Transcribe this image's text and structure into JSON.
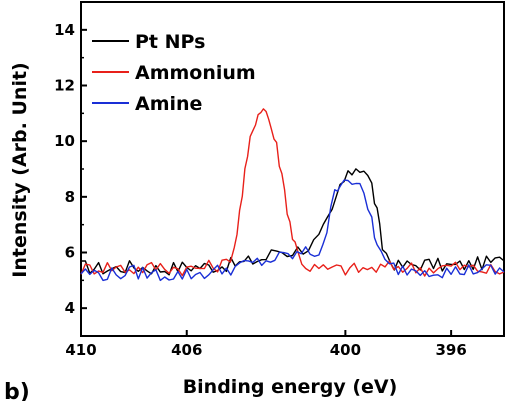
{
  "chart_data": {
    "type": "line",
    "title": "",
    "xlabel": "Binding energy (eV)",
    "ylabel": "Intensity (Arb. Unit)",
    "xlim": [
      410,
      394
    ],
    "ylim": [
      3,
      15
    ],
    "x_reversed": true,
    "x_ticks": [
      410,
      406,
      400,
      396
    ],
    "x_tick_labels": [
      "410",
      "406",
      "400",
      "396"
    ],
    "y_ticks": [
      4,
      6,
      8,
      10,
      12,
      14
    ],
    "y_tick_labels": [
      "4",
      "6",
      "8",
      "10",
      "12",
      "14"
    ],
    "grid": false,
    "legend_position": "top-left",
    "panel_label": "b)",
    "series": [
      {
        "name": "Pt NPs",
        "color": "#000000",
        "points": [
          [
            410,
            5.5
          ],
          [
            409,
            5.4
          ],
          [
            408,
            5.5
          ],
          [
            407,
            5.4
          ],
          [
            406,
            5.5
          ],
          [
            405,
            5.5
          ],
          [
            404,
            5.6
          ],
          [
            403.5,
            5.7
          ],
          [
            403,
            5.8
          ],
          [
            402.6,
            6.1
          ],
          [
            402.2,
            6.0
          ],
          [
            401.8,
            6.1
          ],
          [
            401.4,
            6.2
          ],
          [
            401,
            6.5
          ],
          [
            400.5,
            7.4
          ],
          [
            400.2,
            8.4
          ],
          [
            399.9,
            8.7
          ],
          [
            399.6,
            9.1
          ],
          [
            399.3,
            9.0
          ],
          [
            399.0,
            8.4
          ],
          [
            398.8,
            7.4
          ],
          [
            398.6,
            6.2
          ],
          [
            398.3,
            5.7
          ],
          [
            398,
            5.5
          ],
          [
            397,
            5.6
          ],
          [
            396,
            5.5
          ],
          [
            395,
            5.6
          ],
          [
            394,
            5.7
          ]
        ]
      },
      {
        "name": "Ammonium",
        "color": "#e8201a",
        "points": [
          [
            410,
            5.4
          ],
          [
            409,
            5.5
          ],
          [
            408,
            5.4
          ],
          [
            407,
            5.5
          ],
          [
            406,
            5.4
          ],
          [
            405,
            5.5
          ],
          [
            404.5,
            5.6
          ],
          [
            404.2,
            6.2
          ],
          [
            404,
            7.4
          ],
          [
            403.8,
            8.8
          ],
          [
            403.6,
            10.0
          ],
          [
            403.4,
            10.8
          ],
          [
            403.2,
            11.2
          ],
          [
            403.0,
            11.1
          ],
          [
            402.8,
            10.5
          ],
          [
            402.6,
            9.8
          ],
          [
            402.4,
            8.8
          ],
          [
            402.2,
            7.6
          ],
          [
            402,
            6.6
          ],
          [
            401.8,
            6.0
          ],
          [
            401.5,
            5.5
          ],
          [
            401,
            5.4
          ],
          [
            400,
            5.4
          ],
          [
            399,
            5.4
          ],
          [
            398,
            5.5
          ],
          [
            397,
            5.4
          ],
          [
            396,
            5.5
          ],
          [
            395,
            5.4
          ],
          [
            394,
            5.3
          ]
        ]
      },
      {
        "name": "Amine",
        "color": "#1a2fd6",
        "points": [
          [
            410,
            5.3
          ],
          [
            409,
            5.2
          ],
          [
            408,
            5.3
          ],
          [
            407,
            5.2
          ],
          [
            406,
            5.2
          ],
          [
            405,
            5.3
          ],
          [
            404.5,
            5.4
          ],
          [
            404,
            5.5
          ],
          [
            403.5,
            5.6
          ],
          [
            403,
            5.7
          ],
          [
            402.5,
            5.8
          ],
          [
            402,
            5.9
          ],
          [
            401.5,
            6.0
          ],
          [
            401,
            6.0
          ],
          [
            400.7,
            6.8
          ],
          [
            400.4,
            8.1
          ],
          [
            400.2,
            8.6
          ],
          [
            399.9,
            8.7
          ],
          [
            399.6,
            8.5
          ],
          [
            399.3,
            8.0
          ],
          [
            399.0,
            7.2
          ],
          [
            398.8,
            6.2
          ],
          [
            398.5,
            5.6
          ],
          [
            398,
            5.4
          ],
          [
            397,
            5.4
          ],
          [
            396,
            5.3
          ],
          [
            395,
            5.4
          ],
          [
            394,
            5.3
          ]
        ]
      }
    ]
  }
}
